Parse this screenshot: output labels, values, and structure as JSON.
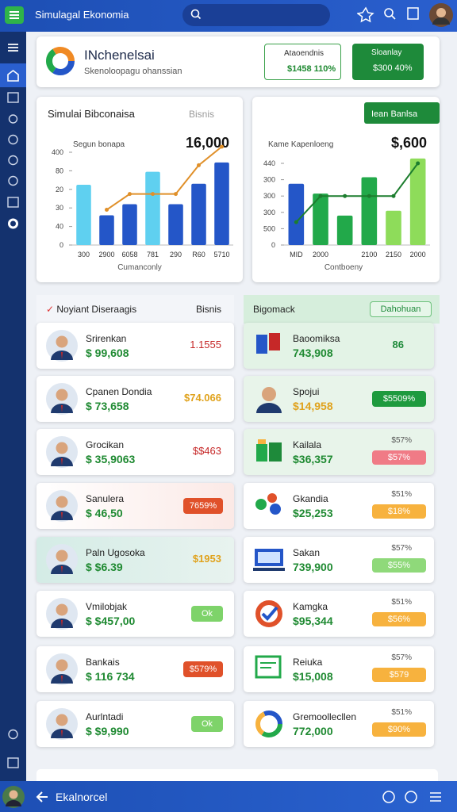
{
  "app_bar": {
    "title": "Simulagal Ekonomia"
  },
  "header": {
    "title": "INchenelsai",
    "subtitle": "Skenoloopagu ohanssian",
    "badges": [
      {
        "label": "Ataoendnis",
        "value": "$1458 110%"
      },
      {
        "label": "Sloanlay",
        "value": "$300 40%"
      }
    ]
  },
  "charts": [
    {
      "type": "bar",
      "title": "Simulai Bibconaisa",
      "tag": "Bisnis",
      "subtitle": "Segun bonapa",
      "total": "16,000",
      "x_label": "Cumanconly",
      "categories": [
        "300",
        "2900",
        "6058",
        "781",
        "290",
        "R60",
        "5710"
      ],
      "ylim": [
        0,
        110
      ],
      "yticks": [
        0,
        {
          "value": 20,
          "label": "40"
        },
        {
          "value": 40,
          "label": "30"
        },
        {
          "value": 60,
          "label": "20"
        },
        {
          "value": 80,
          "label": "80"
        },
        {
          "value": 100,
          "label": "400"
        }
      ],
      "series": [
        {
          "type": "bar",
          "colors": [
            "#5fd0f0",
            "#2456c8",
            "#2456c8",
            "#5fd0f0",
            "#2456c8",
            "#2456c8",
            "#2456c8"
          ],
          "values": [
            65,
            32,
            44,
            79,
            44,
            66,
            89
          ]
        },
        {
          "type": "line",
          "color": "#e0902a",
          "values": [
            null,
            38,
            55,
            55,
            55,
            86,
            106
          ]
        }
      ]
    },
    {
      "type": "bar",
      "button": "Iean Banlsa",
      "subtitle": "Kame Kapenloeng",
      "total": "$,600",
      "x_label": "Contboeny",
      "categories": [
        "MID",
        "2000",
        null,
        "2100",
        "2150",
        "2000"
      ],
      "ylim": [
        0,
        110
      ],
      "yticks": [
        0,
        {
          "value": 20,
          "label": "500"
        },
        {
          "value": 40,
          "label": "300"
        },
        {
          "value": 60,
          "label": "300"
        },
        {
          "value": 80,
          "label": "300"
        },
        {
          "value": 100,
          "label": "440"
        }
      ],
      "series": [
        {
          "type": "bar",
          "colors": [
            "#2456c8",
            "#22a94a",
            "#22a94a",
            "#22a94a",
            "#8edc5a",
            "#8edc5a"
          ],
          "values": [
            75,
            63,
            36,
            83,
            42,
            106
          ]
        },
        {
          "type": "line",
          "color": "#1c7d2e",
          "values": [
            28,
            60,
            60,
            60,
            60,
            100
          ]
        }
      ]
    }
  ],
  "left_list": {
    "title": "Noyiant Diseraagis",
    "action": "Bisnis",
    "items": [
      {
        "name": "Srirenkan",
        "amount": "$ 99,608",
        "value": "1.1555"
      },
      {
        "name": "Cpanen Dondia",
        "amount": "$ 73,658",
        "value": "$74.066"
      },
      {
        "name": "Grocikan",
        "amount": "$ 35,9063",
        "value": "$$463"
      },
      {
        "name": "Sanulera",
        "amount": "$ 46,50",
        "value": "7659%"
      },
      {
        "name": "Paln Ugosoka",
        "amount": "$ $6.39",
        "value": "$1953"
      },
      {
        "name": "Vmilobjak",
        "amount": "$ $457,00",
        "value": "Ok"
      },
      {
        "name": "Bankais",
        "amount": "$ 116 734",
        "value": "$579%"
      },
      {
        "name": "Aurlntadi",
        "amount": "$ $9,990",
        "value": "Ok"
      }
    ]
  },
  "right_list": {
    "title": "Bigomack",
    "action": "Dahohuan",
    "items": [
      {
        "name": "Baoomiksa",
        "amount": "743,908",
        "badge": "86"
      },
      {
        "name": "Spojui",
        "amount": "$14,958",
        "badge": "$5509%"
      },
      {
        "name": "Kailala",
        "amount": "$36,357",
        "percent": "$57%",
        "badge": "$57%"
      },
      {
        "name": "Gkandia",
        "amount": "$25,253",
        "percent": "$51%",
        "badge": "$18%"
      },
      {
        "name": "Sakan",
        "amount": "739,900",
        "percent": "$57%",
        "badge": "$55%"
      },
      {
        "name": "Kamgka",
        "amount": "$95,344",
        "percent": "$51%",
        "badge": "$56%"
      },
      {
        "name": "Reiuka",
        "amount": "$15,008",
        "percent": "$57%",
        "badge": "$579"
      },
      {
        "name": "Gremoollecllen",
        "amount": "772,000",
        "percent": "$51%",
        "badge": "$90%"
      }
    ]
  },
  "bottom_bar": {
    "title": "Ekalnorcel"
  }
}
